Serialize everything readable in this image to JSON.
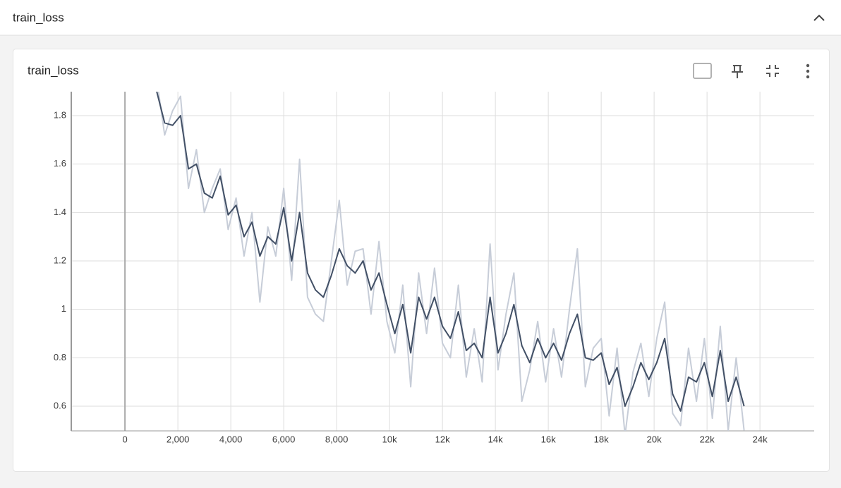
{
  "header": {
    "title": "train_loss"
  },
  "chart_data": {
    "type": "line",
    "title": "train_loss",
    "x": [
      1200,
      1500,
      1800,
      2100,
      2400,
      2700,
      3000,
      3300,
      3600,
      3900,
      4200,
      4500,
      4800,
      5100,
      5400,
      5700,
      6000,
      6300,
      6600,
      6900,
      7200,
      7500,
      7800,
      8100,
      8400,
      8700,
      9000,
      9300,
      9600,
      9900,
      10200,
      10500,
      10800,
      11100,
      11400,
      11700,
      12000,
      12300,
      12600,
      12900,
      13200,
      13500,
      13800,
      14100,
      14400,
      14700,
      15000,
      15300,
      15600,
      15900,
      16200,
      16500,
      16800,
      17100,
      17400,
      17700,
      18000,
      18300,
      18600,
      18900,
      19200,
      19500,
      19800,
      20100,
      20400,
      20700,
      21000,
      21300,
      21600,
      21900,
      22200,
      22500,
      22800,
      23100,
      23400
    ],
    "series": [
      {
        "color": "#c7cdd8",
        "values": [
          1.95,
          1.72,
          1.82,
          1.88,
          1.5,
          1.66,
          1.4,
          1.5,
          1.58,
          1.33,
          1.46,
          1.22,
          1.4,
          1.03,
          1.34,
          1.22,
          1.5,
          1.12,
          1.62,
          1.05,
          0.98,
          0.95,
          1.2,
          1.45,
          1.1,
          1.24,
          1.25,
          0.98,
          1.28,
          0.95,
          0.82,
          1.1,
          0.68,
          1.15,
          0.9,
          1.17,
          0.86,
          0.8,
          1.1,
          0.72,
          0.92,
          0.7,
          1.27,
          0.75,
          0.98,
          1.15,
          0.62,
          0.75,
          0.95,
          0.7,
          0.92,
          0.72,
          1.0,
          1.25,
          0.68,
          0.84,
          0.88,
          0.56,
          0.84,
          0.48,
          0.74,
          0.86,
          0.64,
          0.88,
          1.03,
          0.57,
          0.52,
          0.84,
          0.62,
          0.88,
          0.55,
          0.93,
          0.5,
          0.8,
          0.5
        ]
      },
      {
        "color": "#425066",
        "values": [
          1.9,
          1.77,
          1.76,
          1.8,
          1.58,
          1.6,
          1.48,
          1.46,
          1.55,
          1.39,
          1.43,
          1.3,
          1.36,
          1.22,
          1.3,
          1.27,
          1.42,
          1.2,
          1.4,
          1.15,
          1.08,
          1.05,
          1.14,
          1.25,
          1.18,
          1.15,
          1.2,
          1.08,
          1.15,
          1.02,
          0.9,
          1.02,
          0.82,
          1.05,
          0.96,
          1.05,
          0.93,
          0.88,
          0.99,
          0.83,
          0.86,
          0.8,
          1.05,
          0.82,
          0.9,
          1.02,
          0.85,
          0.78,
          0.88,
          0.8,
          0.86,
          0.79,
          0.9,
          0.98,
          0.8,
          0.79,
          0.82,
          0.69,
          0.76,
          0.6,
          0.68,
          0.78,
          0.71,
          0.78,
          0.88,
          0.65,
          0.58,
          0.72,
          0.7,
          0.78,
          0.64,
          0.83,
          0.62,
          0.72,
          0.6
        ]
      }
    ],
    "xlim": [
      -2030,
      26050
    ],
    "ylim": [
      0.498,
      1.899
    ],
    "xticks": [
      0,
      {
        "value": 2000,
        "label": "2,000"
      },
      {
        "value": 4000,
        "label": "4,000"
      },
      {
        "value": 6000,
        "label": "6,000"
      },
      {
        "value": 8000,
        "label": "8,000"
      },
      {
        "value": 10000,
        "label": "10k"
      },
      {
        "value": 12000,
        "label": "12k"
      },
      {
        "value": 14000,
        "label": "14k"
      },
      {
        "value": 16000,
        "label": "16k"
      },
      {
        "value": 18000,
        "label": "18k"
      },
      {
        "value": 20000,
        "label": "20k"
      },
      {
        "value": 22000,
        "label": "22k"
      },
      {
        "value": 24000,
        "label": "24k"
      }
    ],
    "yticks": [
      0.6,
      0.8,
      1,
      1.2,
      1.4,
      1.6,
      1.8
    ],
    "grid": true
  }
}
